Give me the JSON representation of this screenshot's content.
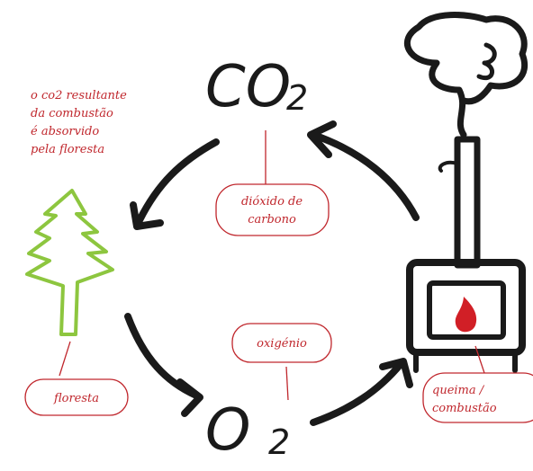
{
  "formulas": {
    "co2": {
      "main": "CO",
      "sub": "2"
    },
    "o2": {
      "main": "O",
      "sub": "2"
    }
  },
  "note": [
    "o co2 resultante",
    "da combustão",
    "é absorvido",
    "pela floresta"
  ],
  "labels": {
    "dioxide": [
      "dióxido de",
      "carbono"
    ],
    "oxygen": [
      "oxigénio"
    ],
    "forest": [
      "floresta"
    ],
    "burn": [
      "queima /",
      "combustão"
    ]
  }
}
